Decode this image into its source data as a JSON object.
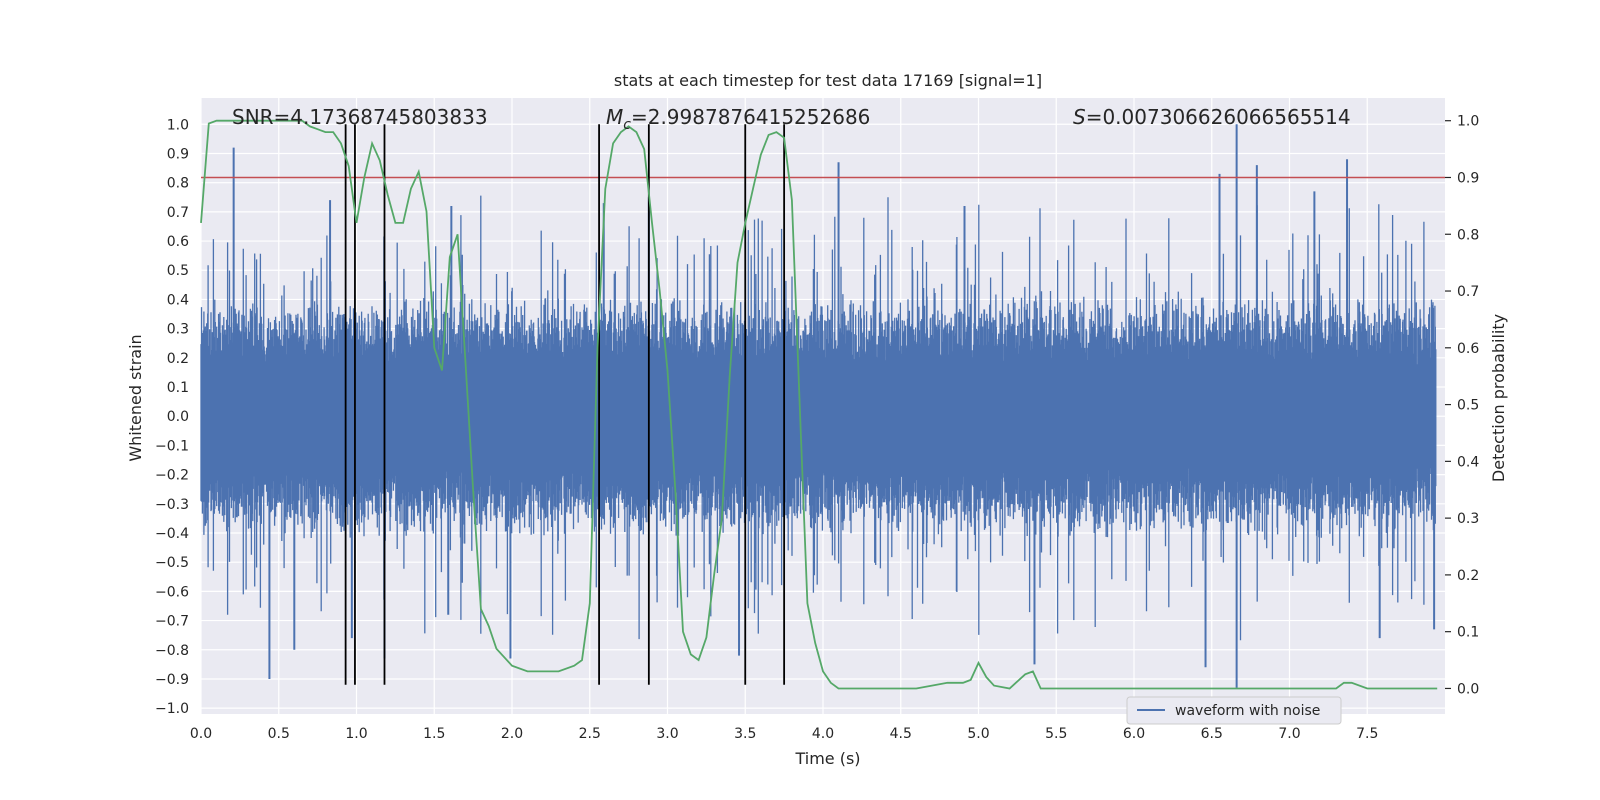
{
  "chart_data": {
    "type": "line",
    "title": "stats at each timestep for test data 17169 [signal=1]",
    "xlabel": "Time (s)",
    "ylabel_left": "Whitened strain",
    "ylabel_right": "Detection probability",
    "xlim": [
      0.0,
      8.0
    ],
    "ylim_left": [
      -1.02,
      1.09
    ],
    "ylim_right": [
      -0.045,
      1.04
    ],
    "x_ticks": [
      0.0,
      0.5,
      1.0,
      1.5,
      2.0,
      2.5,
      3.0,
      3.5,
      4.0,
      4.5,
      5.0,
      5.5,
      6.0,
      6.5,
      7.0,
      7.5
    ],
    "x_tick_labels": [
      "0.0",
      "0.5",
      "1.0",
      "1.5",
      "2.0",
      "2.5",
      "3.0",
      "3.5",
      "4.0",
      "4.5",
      "5.0",
      "5.5",
      "6.0",
      "6.5",
      "7.0",
      "7.5"
    ],
    "y_ticks_left": [
      1.0,
      0.9,
      0.8,
      0.7,
      0.6,
      0.5,
      0.4,
      0.3,
      0.2,
      0.1,
      0.0,
      -0.1,
      -0.2,
      -0.3,
      -0.4,
      -0.5,
      -0.6,
      -0.7,
      -0.8,
      -0.9,
      -1.0
    ],
    "y_tick_labels_left": [
      "1.0",
      "0.9",
      "0.8",
      "0.7",
      "0.6",
      "0.5",
      "0.4",
      "0.3",
      "0.2",
      "0.1",
      "0.0",
      "−0.1",
      "−0.2",
      "−0.3",
      "−0.4",
      "−0.5",
      "−0.6",
      "−0.7",
      "−0.8",
      "−0.9",
      "−1.0"
    ],
    "y_ticks_right": [
      1.0,
      0.9,
      0.8,
      0.7,
      0.6,
      0.5,
      0.4,
      0.3,
      0.2,
      0.1,
      0.0
    ],
    "y_tick_labels_right": [
      "1.0",
      "0.9",
      "0.8",
      "0.7",
      "0.6",
      "0.5",
      "0.4",
      "0.3",
      "0.2",
      "0.1",
      "0.0"
    ],
    "grid": true,
    "legend_placement": "lower-right",
    "annotations": {
      "snr": "SNR=4.17368745803833",
      "mc_symbol": "M",
      "mc_sub": "c",
      "mc_value": "=2.9987876415252686",
      "s_symbol": "S",
      "s_value": "=0.007306626066565514"
    },
    "threshold": {
      "value": 0.9,
      "color": "#c44e52"
    },
    "vertical_lines": {
      "x": [
        0.93,
        0.99,
        1.18,
        2.56,
        2.88,
        3.5,
        3.75
      ],
      "y_top": 1.0,
      "y_bottom": -0.92,
      "color": "#000000"
    },
    "series": [
      {
        "name": "waveform with noise",
        "color": "#4c72b0",
        "kind": "noise_envelope",
        "typical_amplitude": 0.42,
        "peaks": [
          {
            "x": 0.21,
            "y": 0.92
          },
          {
            "x": 0.44,
            "y": -0.9
          },
          {
            "x": 0.6,
            "y": -0.8
          },
          {
            "x": 0.83,
            "y": 0.74
          },
          {
            "x": 0.97,
            "y": -0.76
          },
          {
            "x": 1.18,
            "y": -0.83
          },
          {
            "x": 1.59,
            "y": -0.68
          },
          {
            "x": 1.61,
            "y": 0.72
          },
          {
            "x": 1.99,
            "y": -0.83
          },
          {
            "x": 2.59,
            "y": 0.73
          },
          {
            "x": 2.88,
            "y": 0.75
          },
          {
            "x": 3.46,
            "y": -0.82
          },
          {
            "x": 4.1,
            "y": 0.87
          },
          {
            "x": 4.91,
            "y": 0.72
          },
          {
            "x": 5.36,
            "y": -0.85
          },
          {
            "x": 6.46,
            "y": -0.86
          },
          {
            "x": 6.55,
            "y": 0.83
          },
          {
            "x": 6.66,
            "y": 1.0
          },
          {
            "x": 6.66,
            "y": -0.93
          },
          {
            "x": 6.79,
            "y": 0.86
          },
          {
            "x": 7.16,
            "y": 0.77
          },
          {
            "x": 7.37,
            "y": 0.88
          },
          {
            "x": 7.58,
            "y": -0.76
          },
          {
            "x": 7.93,
            "y": -0.73
          }
        ]
      },
      {
        "name": "",
        "color": "#55a868",
        "axis": "right",
        "x": [
          0.0,
          0.05,
          0.1,
          0.2,
          0.3,
          0.4,
          0.5,
          0.6,
          0.65,
          0.7,
          0.75,
          0.8,
          0.85,
          0.9,
          0.95,
          1.0,
          1.05,
          1.1,
          1.15,
          1.2,
          1.25,
          1.3,
          1.35,
          1.4,
          1.45,
          1.5,
          1.55,
          1.6,
          1.65,
          1.7,
          1.75,
          1.8,
          1.85,
          1.9,
          2.0,
          2.1,
          2.2,
          2.3,
          2.4,
          2.45,
          2.5,
          2.55,
          2.6,
          2.65,
          2.7,
          2.75,
          2.8,
          2.85,
          2.9,
          2.95,
          3.0,
          3.05,
          3.1,
          3.15,
          3.2,
          3.25,
          3.3,
          3.35,
          3.4,
          3.45,
          3.5,
          3.55,
          3.6,
          3.65,
          3.7,
          3.75,
          3.8,
          3.85,
          3.9,
          3.95,
          4.0,
          4.05,
          4.1,
          4.2,
          4.3,
          4.4,
          4.5,
          4.6,
          4.7,
          4.8,
          4.9,
          4.95,
          5.0,
          5.05,
          5.1,
          5.2,
          5.3,
          5.35,
          5.4,
          5.6,
          5.8,
          6.0,
          6.2,
          6.4,
          6.6,
          6.8,
          7.0,
          7.2,
          7.3,
          7.35,
          7.4,
          7.5,
          7.6,
          7.8,
          7.95
        ],
        "y": [
          0.82,
          0.995,
          1.0,
          1.0,
          1.0,
          1.0,
          1.0,
          1.0,
          1.0,
          0.99,
          0.985,
          0.98,
          0.98,
          0.96,
          0.92,
          0.82,
          0.9,
          0.96,
          0.93,
          0.87,
          0.82,
          0.82,
          0.88,
          0.91,
          0.84,
          0.6,
          0.56,
          0.76,
          0.8,
          0.58,
          0.35,
          0.14,
          0.11,
          0.07,
          0.04,
          0.03,
          0.03,
          0.03,
          0.04,
          0.05,
          0.15,
          0.6,
          0.88,
          0.96,
          0.98,
          0.99,
          0.98,
          0.95,
          0.82,
          0.7,
          0.56,
          0.35,
          0.1,
          0.06,
          0.05,
          0.09,
          0.2,
          0.3,
          0.55,
          0.75,
          0.82,
          0.88,
          0.94,
          0.975,
          0.98,
          0.97,
          0.86,
          0.5,
          0.15,
          0.08,
          0.03,
          0.01,
          0.0,
          0.0,
          0.0,
          0.0,
          0.0,
          0.0,
          0.005,
          0.01,
          0.01,
          0.015,
          0.045,
          0.02,
          0.005,
          0.0,
          0.025,
          0.03,
          0.0,
          0.0,
          0.0,
          0.0,
          0.0,
          0.0,
          0.0,
          0.0,
          0.0,
          0.0,
          0.0,
          0.01,
          0.01,
          0.0,
          0.0,
          0.0,
          0.0
        ]
      }
    ]
  }
}
